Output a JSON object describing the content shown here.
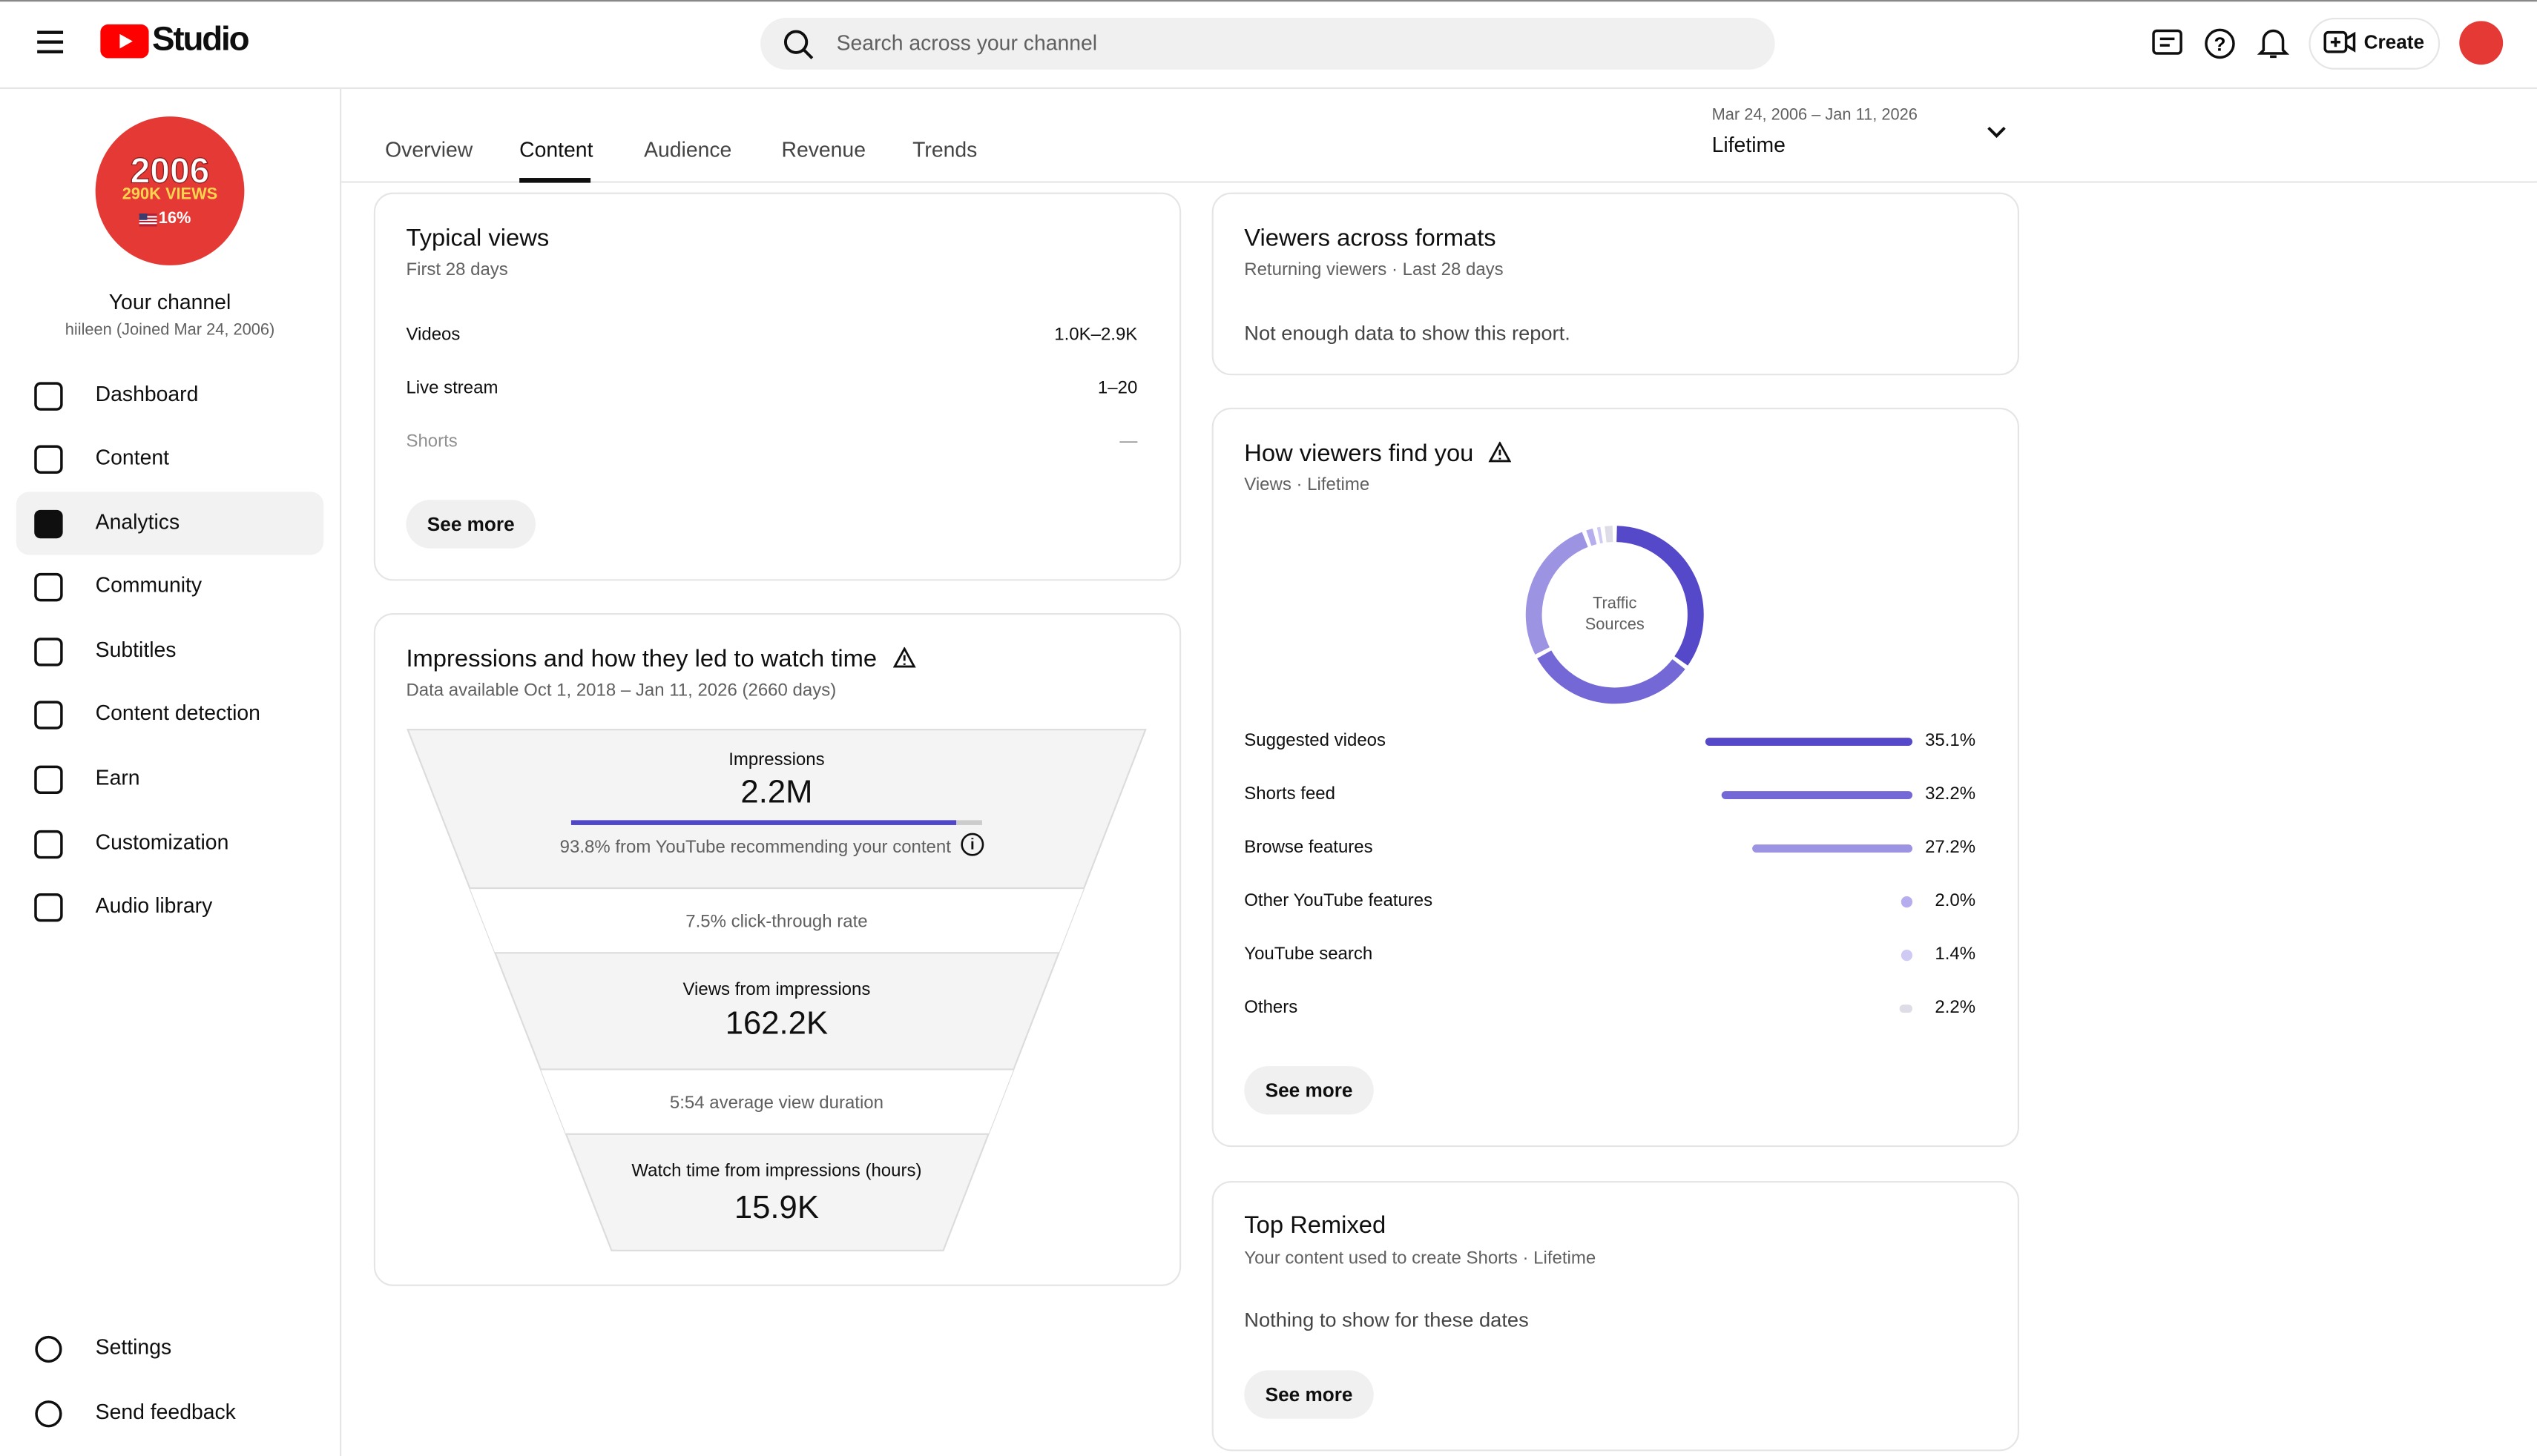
{
  "header": {
    "brand": "Studio",
    "search_placeholder": "Search across your channel",
    "create": "Create"
  },
  "sidebar": {
    "avatar": {
      "line1": "2006",
      "line2": "290K VIEWS",
      "line3": "16%"
    },
    "channel_title": "Your channel",
    "channel_sub": "hiileen (Joined Mar 24, 2006)",
    "nav": [
      "Dashboard",
      "Content",
      "Analytics",
      "Community",
      "Subtitles",
      "Content detection",
      "Earn",
      "Customization",
      "Audio library"
    ],
    "footer_nav": [
      "Settings",
      "Send feedback"
    ]
  },
  "tabs": [
    "Overview",
    "Content",
    "Audience",
    "Revenue",
    "Trends"
  ],
  "date_range": {
    "range": "Mar 24, 2006 – Jan 11, 2026",
    "label": "Lifetime"
  },
  "typical_views": {
    "title": "Typical views",
    "subtitle": "First 28 days",
    "rows": [
      [
        "Videos",
        "1.0K–2.9K"
      ],
      [
        "Live stream",
        "1–20"
      ],
      [
        "Shorts",
        "—"
      ]
    ],
    "button": "See more"
  },
  "impressions": {
    "title": "Impressions and how they led to watch time",
    "subtitle": "Data available Oct 1, 2018 – Jan 11, 2026 (2660 days)",
    "impressions_label": "Impressions",
    "impressions_value": "2.2M",
    "recommend_note": "93.8% from YouTube recommending your content",
    "ctr": "7.5% click-through rate",
    "views_label": "Views from impressions",
    "views_value": "162.2K",
    "avd": "5:54 average view duration",
    "watch_label": "Watch time from impressions (hours)",
    "watch_value": "15.9K"
  },
  "viewers_across_formats": {
    "title": "Viewers across formats",
    "subtitle": "Returning viewers · Last 28 days",
    "message": "Not enough data to show this report."
  },
  "how_viewers_find_you": {
    "title": "How viewers find you",
    "subtitle": "Views · Lifetime",
    "donut_label": [
      "Traffic",
      "Sources"
    ],
    "sources": [
      {
        "name": "Suggested videos",
        "value": 35.1,
        "label": "35.1%",
        "color": "#5548c9"
      },
      {
        "name": "Shorts feed",
        "value": 32.2,
        "label": "32.2%",
        "color": "#7467d6"
      },
      {
        "name": "Browse features",
        "value": 27.2,
        "label": "27.2%",
        "color": "#9d93e3"
      },
      {
        "name": "Other YouTube features",
        "value": 2.0,
        "label": "2.0%",
        "color": "#b5adee"
      },
      {
        "name": "YouTube search",
        "value": 1.4,
        "label": "1.4%",
        "color": "#cfcaf4"
      },
      {
        "name": "Others",
        "value": 2.2,
        "label": "2.2%",
        "color": "#dedce6"
      }
    ],
    "button": "See more"
  },
  "top_remixed": {
    "title": "Top Remixed",
    "subtitle": "Your content used to create Shorts · Lifetime",
    "message": "Nothing to show for these dates",
    "button": "See more"
  }
}
